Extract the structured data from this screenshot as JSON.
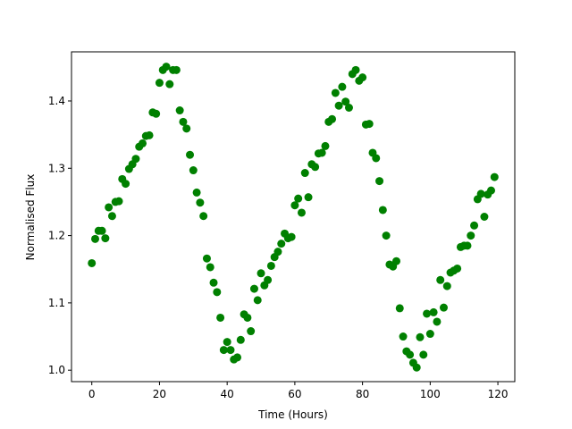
{
  "chart_data": {
    "type": "scatter",
    "xlabel": "Time (Hours)",
    "ylabel": "Normalised Flux",
    "xlim": [
      -6,
      125
    ],
    "ylim": [
      0.983,
      1.473
    ],
    "xticks": [
      0,
      20,
      40,
      60,
      80,
      100,
      120
    ],
    "yticks": [
      1.0,
      1.1,
      1.2,
      1.3,
      1.4
    ],
    "xtick_labels": [
      "0",
      "20",
      "40",
      "60",
      "80",
      "100",
      "120"
    ],
    "ytick_labels": [
      "1.0",
      "1.1",
      "1.2",
      "1.3",
      "1.4"
    ],
    "grid": false,
    "marker_color": "#008000",
    "series": [
      {
        "x": [
          0,
          1,
          2,
          3,
          4,
          5,
          6,
          7,
          8,
          9,
          10,
          11,
          12,
          13,
          14,
          15,
          16,
          17,
          18,
          19,
          20,
          21,
          22,
          23,
          24,
          25,
          26,
          27,
          28,
          29,
          30,
          31,
          32,
          33,
          34,
          35,
          36,
          37,
          38,
          39,
          40,
          41,
          42,
          43,
          44,
          45,
          46,
          47,
          48,
          49,
          50,
          51,
          52,
          53,
          54,
          55,
          56,
          57,
          58,
          59,
          60,
          61,
          62,
          63,
          64,
          65,
          66,
          67,
          68,
          69,
          70,
          71,
          72,
          73,
          74,
          75,
          76,
          77,
          78,
          79,
          80,
          81,
          82,
          83,
          84,
          85,
          86,
          87,
          88,
          89,
          90,
          91,
          92,
          93,
          94,
          95,
          96,
          97,
          98,
          99,
          100,
          101,
          102,
          103,
          104,
          105,
          106,
          107,
          108,
          109,
          110,
          111,
          112,
          113,
          114,
          115,
          116,
          117,
          118,
          119
        ],
        "y": [
          1.159,
          1.195,
          1.207,
          1.207,
          1.196,
          1.242,
          1.229,
          1.25,
          1.251,
          1.284,
          1.277,
          1.299,
          1.306,
          1.314,
          1.332,
          1.337,
          1.348,
          1.349,
          1.383,
          1.381,
          1.427,
          1.446,
          1.451,
          1.425,
          1.446,
          1.446,
          1.386,
          1.369,
          1.359,
          1.32,
          1.297,
          1.264,
          1.249,
          1.229,
          1.166,
          1.153,
          1.13,
          1.116,
          1.078,
          1.03,
          1.042,
          1.03,
          1.016,
          1.019,
          1.045,
          1.083,
          1.078,
          1.058,
          1.121,
          1.104,
          1.144,
          1.126,
          1.134,
          1.155,
          1.168,
          1.176,
          1.188,
          1.203,
          1.196,
          1.198,
          1.245,
          1.255,
          1.234,
          1.293,
          1.257,
          1.306,
          1.302,
          1.322,
          1.323,
          1.333,
          1.369,
          1.373,
          1.412,
          1.393,
          1.421,
          1.399,
          1.39,
          1.44,
          1.446,
          1.43,
          1.435,
          1.365,
          1.366,
          1.323,
          1.315,
          1.281,
          1.238,
          1.2,
          1.157,
          1.154,
          1.162,
          1.092,
          1.05,
          1.028,
          1.023,
          1.011,
          1.004,
          1.049,
          1.023,
          1.084,
          1.054,
          1.086,
          1.072,
          1.134,
          1.093,
          1.125,
          1.145,
          1.148,
          1.151,
          1.183,
          1.185,
          1.185,
          1.2,
          1.215,
          1.254,
          1.262,
          1.228,
          1.261,
          1.267,
          1.287
        ]
      }
    ]
  }
}
